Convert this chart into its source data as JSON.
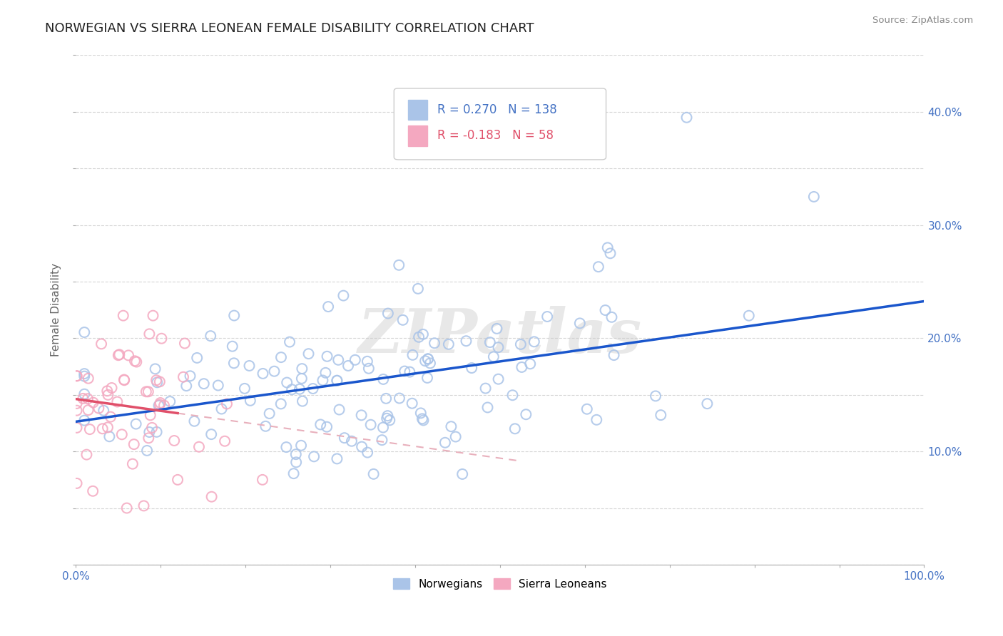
{
  "title": "NORWEGIAN VS SIERRA LEONEAN FEMALE DISABILITY CORRELATION CHART",
  "source": "Source: ZipAtlas.com",
  "ylabel": "Female Disability",
  "r_norwegian": 0.27,
  "n_norwegian": 138,
  "r_sierraleonean": -0.183,
  "n_sierraleonean": 58,
  "norwegian_color": "#aac4e8",
  "sierraleonean_color": "#f4a8c0",
  "trendline_norwegian_color": "#1a56cc",
  "trendline_sierraleonean_color": "#e0506a",
  "trendline_sl_dashed_color": "#e8b0bc",
  "watermark": "ZIPatlas",
  "xlim": [
    0.0,
    1.0
  ],
  "ylim": [
    0.0,
    0.45
  ],
  "x_ticks": [
    0.0,
    0.1,
    0.2,
    0.3,
    0.4,
    0.5,
    0.6,
    0.7,
    0.8,
    0.9,
    1.0
  ],
  "y_ticks": [
    0.0,
    0.05,
    0.1,
    0.15,
    0.2,
    0.25,
    0.3,
    0.35,
    0.4,
    0.45
  ],
  "x_tick_labels": [
    "0.0%",
    "",
    "",
    "",
    "",
    "",
    "",
    "",
    "",
    "",
    "100.0%"
  ],
  "y_tick_labels_right": [
    "",
    "",
    "10.0%",
    "",
    "20.0%",
    "",
    "30.0%",
    "",
    "40.0%",
    ""
  ],
  "background_color": "#ffffff",
  "grid_color": "#cccccc",
  "tick_label_color": "#4472c4",
  "legend_label_color_norw": "#4472c4",
  "legend_label_color_sl": "#e0506a"
}
